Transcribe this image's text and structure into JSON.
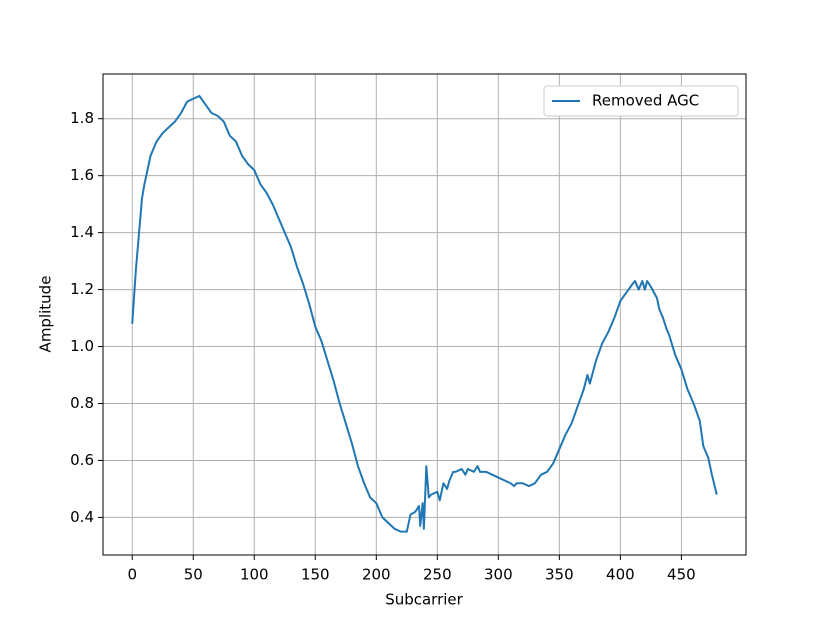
{
  "chart_data": {
    "type": "line",
    "xlabel": "Subcarrier",
    "ylabel": "Amplitude",
    "x": [
      0,
      3,
      5,
      8,
      10,
      15,
      20,
      25,
      30,
      35,
      40,
      45,
      50,
      55,
      60,
      65,
      70,
      75,
      80,
      85,
      90,
      95,
      100,
      105,
      110,
      115,
      120,
      125,
      130,
      135,
      140,
      145,
      150,
      155,
      160,
      165,
      170,
      175,
      180,
      185,
      190,
      195,
      200,
      205,
      210,
      215,
      220,
      225,
      228,
      232,
      235,
      236,
      238,
      239,
      241,
      243,
      245,
      250,
      252,
      255,
      258,
      260,
      263,
      265,
      270,
      273,
      275,
      280,
      283,
      285,
      290,
      295,
      300,
      305,
      310,
      313,
      315,
      320,
      325,
      330,
      335,
      340,
      345,
      350,
      355,
      360,
      365,
      370,
      373,
      375,
      380,
      385,
      390,
      395,
      400,
      405,
      410,
      412,
      415,
      418,
      420,
      422,
      425,
      430,
      432,
      435,
      438,
      440,
      445,
      450,
      455,
      460,
      465,
      468,
      472,
      475,
      479
    ],
    "series": [
      {
        "name": "Removed AGC",
        "color": "#1f77b4",
        "values": [
          1.08,
          1.27,
          1.37,
          1.52,
          1.57,
          1.67,
          1.72,
          1.75,
          1.77,
          1.79,
          1.82,
          1.86,
          1.87,
          1.88,
          1.85,
          1.82,
          1.81,
          1.79,
          1.74,
          1.72,
          1.67,
          1.64,
          1.62,
          1.57,
          1.54,
          1.5,
          1.45,
          1.4,
          1.35,
          1.28,
          1.22,
          1.15,
          1.07,
          1.02,
          0.95,
          0.88,
          0.8,
          0.73,
          0.66,
          0.58,
          0.52,
          0.47,
          0.45,
          0.4,
          0.38,
          0.36,
          0.35,
          0.35,
          0.41,
          0.42,
          0.44,
          0.37,
          0.45,
          0.36,
          0.58,
          0.47,
          0.48,
          0.49,
          0.46,
          0.52,
          0.5,
          0.53,
          0.56,
          0.56,
          0.57,
          0.55,
          0.57,
          0.56,
          0.58,
          0.56,
          0.56,
          0.55,
          0.54,
          0.53,
          0.52,
          0.51,
          0.52,
          0.52,
          0.51,
          0.52,
          0.55,
          0.56,
          0.59,
          0.64,
          0.69,
          0.73,
          0.79,
          0.85,
          0.9,
          0.87,
          0.95,
          1.01,
          1.05,
          1.1,
          1.16,
          1.19,
          1.22,
          1.23,
          1.2,
          1.23,
          1.2,
          1.23,
          1.21,
          1.17,
          1.13,
          1.1,
          1.06,
          1.04,
          0.97,
          0.92,
          0.85,
          0.8,
          0.74,
          0.65,
          0.61,
          0.55,
          0.48
        ]
      }
    ],
    "xlim": [
      -23.95,
      502.95
    ],
    "ylim": [
      0.268,
      1.957
    ],
    "xticks": [
      0,
      50,
      100,
      150,
      200,
      250,
      300,
      350,
      400,
      450
    ],
    "yticks": [
      0.4,
      0.6,
      0.8,
      {
        "value": 1,
        "label": "1.0"
      },
      1.2,
      1.4,
      1.6,
      1.8
    ],
    "grid": true,
    "legend": "upper right"
  }
}
